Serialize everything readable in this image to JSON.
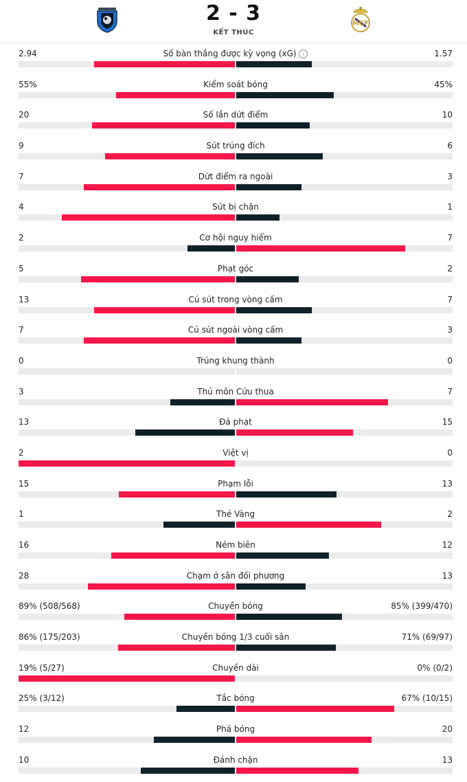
{
  "match": {
    "score": "2 - 3",
    "status": "KẾT THÚC",
    "home_logo": "atalanta-crest-icon",
    "away_logo": "real-madrid-crest-icon"
  },
  "colors": {
    "winner": "#f5164a",
    "loser": "#0f2129",
    "track": "#ebebeb"
  },
  "stats": [
    {
      "label": "Số bàn thắng được kỳ vọng (xG)",
      "home": "2.94",
      "away": "1.57",
      "home_bar": 0.65,
      "away_bar": 0.35,
      "home_better": true,
      "info": true
    },
    {
      "label": "Kiểm soát bóng",
      "home": "55%",
      "away": "45%",
      "home_bar": 0.55,
      "away_bar": 0.45,
      "home_better": true
    },
    {
      "label": "Số lần dứt điểm",
      "home": "20",
      "away": "10",
      "home_bar": 0.66,
      "away_bar": 0.34,
      "home_better": true
    },
    {
      "label": "Sút trúng đích",
      "home": "9",
      "away": "6",
      "home_bar": 0.6,
      "away_bar": 0.4,
      "home_better": true
    },
    {
      "label": "Dứt điểm ra ngoài",
      "home": "7",
      "away": "3",
      "home_bar": 0.7,
      "away_bar": 0.3,
      "home_better": true
    },
    {
      "label": "Sút bị chặn",
      "home": "4",
      "away": "1",
      "home_bar": 0.8,
      "away_bar": 0.2,
      "home_better": true
    },
    {
      "label": "Cơ hội nguy hiểm",
      "home": "2",
      "away": "7",
      "home_bar": 0.22,
      "away_bar": 0.78,
      "home_better": false
    },
    {
      "label": "Phạt góc",
      "home": "5",
      "away": "2",
      "home_bar": 0.71,
      "away_bar": 0.29,
      "home_better": true
    },
    {
      "label": "Cú sút trong vòng cấm",
      "home": "13",
      "away": "7",
      "home_bar": 0.65,
      "away_bar": 0.35,
      "home_better": true
    },
    {
      "label": "Cú sút ngoài vòng cấm",
      "home": "7",
      "away": "3",
      "home_bar": 0.7,
      "away_bar": 0.3,
      "home_better": true
    },
    {
      "label": "Trúng khung thành",
      "home": "0",
      "away": "0",
      "home_bar": 0,
      "away_bar": 0,
      "home_better": true
    },
    {
      "label": "Thủ môn Cứu thua",
      "home": "3",
      "away": "7",
      "home_bar": 0.3,
      "away_bar": 0.7,
      "home_better": false
    },
    {
      "label": "Đá phạt",
      "home": "13",
      "away": "15",
      "home_bar": 0.46,
      "away_bar": 0.54,
      "home_better": false
    },
    {
      "label": "Việt vị",
      "home": "2",
      "away": "0",
      "home_bar": 1.0,
      "away_bar": 0,
      "home_better": true
    },
    {
      "label": "Phạm lỗi",
      "home": "15",
      "away": "13",
      "home_bar": 0.535,
      "away_bar": 0.465,
      "home_better": true
    },
    {
      "label": "Thẻ Vàng",
      "home": "1",
      "away": "2",
      "home_bar": 0.33,
      "away_bar": 0.67,
      "home_better": false
    },
    {
      "label": "Ném biên",
      "home": "16",
      "away": "12",
      "home_bar": 0.57,
      "away_bar": 0.43,
      "home_better": true
    },
    {
      "label": "Chạm ở sân đối phương",
      "home": "28",
      "away": "13",
      "home_bar": 0.68,
      "away_bar": 0.32,
      "home_better": true
    },
    {
      "label": "Chuyền bóng",
      "home": "89% (508/568)",
      "away": "85% (399/470)",
      "home_bar": 0.51,
      "away_bar": 0.49,
      "home_better": true
    },
    {
      "label": "Chuyền bóng 1/3 cuối sân",
      "home": "86% (175/203)",
      "away": "71% (69/97)",
      "home_bar": 0.54,
      "away_bar": 0.46,
      "home_better": true
    },
    {
      "label": "Chuyền dài",
      "home": "19% (5/27)",
      "away": "0% (0/2)",
      "home_bar": 1.0,
      "away_bar": 0,
      "home_better": true
    },
    {
      "label": "Tắc bóng",
      "home": "25% (3/12)",
      "away": "67% (10/15)",
      "home_bar": 0.27,
      "away_bar": 0.73,
      "home_better": false
    },
    {
      "label": "Phá bóng",
      "home": "12",
      "away": "20",
      "home_bar": 0.375,
      "away_bar": 0.625,
      "home_better": false
    },
    {
      "label": "Đánh chặn",
      "home": "10",
      "away": "13",
      "home_bar": 0.435,
      "away_bar": 0.565,
      "home_better": false
    }
  ]
}
